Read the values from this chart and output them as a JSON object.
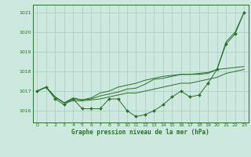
{
  "title": "Graphe pression niveau de la mer (hPa)",
  "bg_color": "#cce8df",
  "line_color": "#2d6e2d",
  "grid_color": "#a8ccbe",
  "xlim": [
    -0.5,
    23.5
  ],
  "ylim": [
    1015.4,
    1021.4
  ],
  "yticks": [
    1016,
    1017,
    1018,
    1019,
    1020,
    1021
  ],
  "xticks": [
    0,
    1,
    2,
    3,
    4,
    5,
    6,
    7,
    8,
    9,
    10,
    11,
    12,
    13,
    14,
    15,
    16,
    17,
    18,
    19,
    20,
    21,
    22,
    23
  ],
  "series": [
    {
      "x": [
        0,
        1,
        2,
        3,
        4,
        5,
        6,
        7,
        8,
        9,
        10,
        11,
        12,
        13,
        14,
        15,
        16,
        17,
        18,
        19,
        20,
        21,
        22,
        23
      ],
      "y": [
        1017.0,
        1017.2,
        1016.6,
        1016.3,
        1016.6,
        1016.1,
        1016.1,
        1016.1,
        1016.6,
        1016.6,
        1016.0,
        1015.7,
        1015.8,
        1016.0,
        1016.3,
        1016.7,
        1017.0,
        1016.7,
        1016.8,
        1017.4,
        1018.1,
        1019.4,
        1019.9,
        1021.0
      ],
      "marker": "D",
      "markersize": 2.0
    },
    {
      "x": [
        0,
        1,
        2,
        3,
        4,
        5,
        6,
        7,
        8,
        9,
        10,
        11,
        12,
        13,
        14,
        15,
        16,
        17,
        18,
        19,
        20,
        21,
        22,
        23
      ],
      "y": [
        1017.0,
        1017.2,
        1016.7,
        1016.4,
        1016.5,
        1016.5,
        1016.55,
        1016.6,
        1016.7,
        1016.8,
        1016.9,
        1016.9,
        1017.0,
        1017.1,
        1017.2,
        1017.3,
        1017.4,
        1017.4,
        1017.5,
        1017.6,
        1017.7,
        1017.9,
        1018.0,
        1018.1
      ],
      "marker": null
    },
    {
      "x": [
        0,
        1,
        2,
        3,
        4,
        5,
        6,
        7,
        8,
        9,
        10,
        11,
        12,
        13,
        14,
        15,
        16,
        17,
        18,
        19,
        20,
        21,
        22,
        23
      ],
      "y": [
        1017.0,
        1017.2,
        1016.7,
        1016.4,
        1016.6,
        1016.55,
        1016.6,
        1016.75,
        1016.85,
        1016.95,
        1017.1,
        1017.15,
        1017.35,
        1017.6,
        1017.65,
        1017.75,
        1017.85,
        1017.85,
        1017.85,
        1017.9,
        1018.1,
        1019.5,
        1020.0,
        1021.0
      ],
      "marker": null
    },
    {
      "x": [
        0,
        1,
        2,
        3,
        4,
        5,
        6,
        7,
        8,
        9,
        10,
        11,
        12,
        13,
        14,
        15,
        16,
        17,
        18,
        19,
        20,
        21,
        22,
        23
      ],
      "y": [
        1017.0,
        1017.2,
        1016.7,
        1016.4,
        1016.65,
        1016.55,
        1016.65,
        1016.9,
        1017.0,
        1017.2,
        1017.3,
        1017.4,
        1017.55,
        1017.65,
        1017.75,
        1017.8,
        1017.85,
        1017.85,
        1017.9,
        1017.95,
        1018.1,
        1018.15,
        1018.2,
        1018.25
      ],
      "marker": null
    }
  ]
}
